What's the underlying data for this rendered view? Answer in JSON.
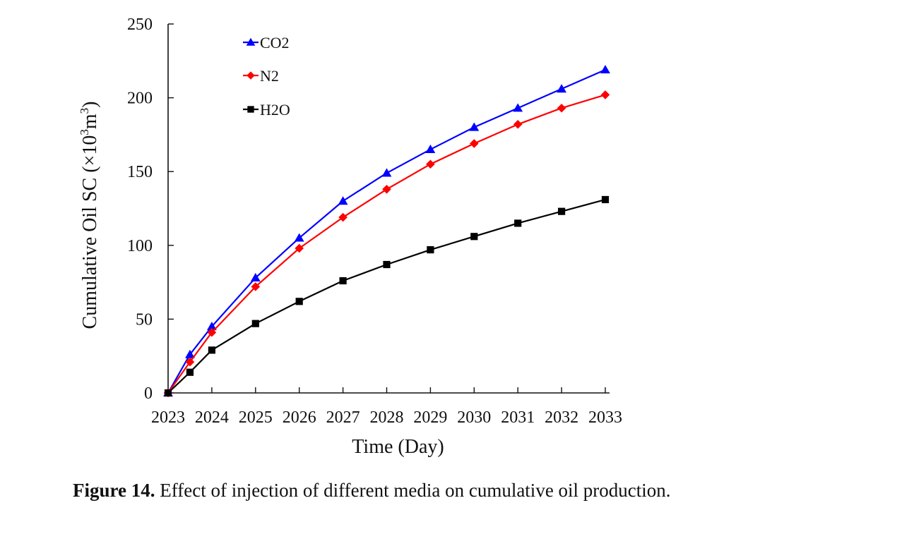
{
  "chart_data": {
    "type": "line",
    "title": "",
    "xlabel": "Time (Day)",
    "ylabel": "Cumulative Oil SC (×10³m³)",
    "ylabel_parts": {
      "main": "Cumulative Oil SC (×10",
      "sup": "3",
      "unit": "m",
      "unit_sup": "3",
      "close": ")"
    },
    "x_ticks": [
      2023,
      2024,
      2025,
      2026,
      2027,
      2028,
      2029,
      2030,
      2031,
      2032,
      2033
    ],
    "y_ticks": [
      0,
      50,
      100,
      150,
      200,
      250
    ],
    "xlim": [
      2023,
      2033
    ],
    "ylim": [
      0,
      250
    ],
    "grid": false,
    "legend_position": "top-left",
    "x": [
      2023,
      2023.5,
      2024,
      2025,
      2026,
      2027,
      2028,
      2029,
      2030,
      2031,
      2032,
      2033
    ],
    "series": [
      {
        "name": "CO2",
        "color": "#0000ff",
        "marker": "triangle",
        "values": [
          0,
          26,
          45,
          78,
          105,
          130,
          149,
          165,
          180,
          193,
          206,
          219
        ]
      },
      {
        "name": "N2",
        "color": "#ff0000",
        "marker": "diamond",
        "values": [
          0,
          21,
          41,
          72,
          98,
          119,
          138,
          155,
          169,
          182,
          193,
          202
        ]
      },
      {
        "name": "H2O",
        "color": "#000000",
        "marker": "square",
        "values": [
          0,
          14,
          29,
          47,
          62,
          76,
          87,
          97,
          106,
          115,
          123,
          131
        ]
      }
    ]
  },
  "caption": {
    "label": "Figure 14.",
    "text": " Effect of injection of different media on cumulative oil production."
  }
}
